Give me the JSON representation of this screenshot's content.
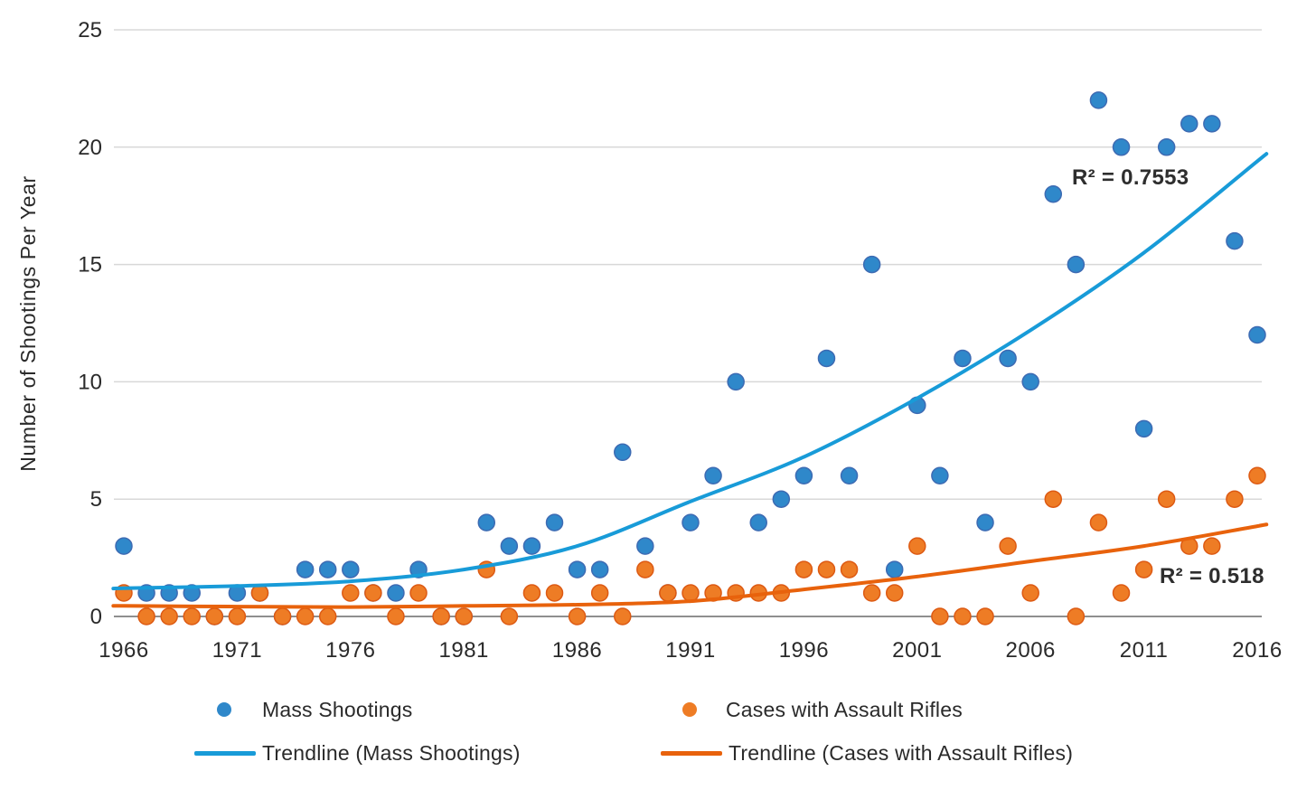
{
  "chart_data": {
    "type": "scatter",
    "title": "",
    "xlabel": "",
    "ylabel": "Number of Shootings Per Year",
    "xlim": [
      1966,
      2016
    ],
    "ylim": [
      0,
      25
    ],
    "x_ticks": [
      1966,
      1971,
      1976,
      1981,
      1986,
      1991,
      1996,
      2001,
      2006,
      2011,
      2016
    ],
    "y_ticks": [
      0,
      5,
      10,
      15,
      20,
      25
    ],
    "grid": "horizontal",
    "legend_position": "bottom",
    "years": [
      1966,
      1967,
      1968,
      1969,
      1970,
      1971,
      1972,
      1973,
      1974,
      1975,
      1976,
      1977,
      1978,
      1979,
      1980,
      1981,
      1982,
      1983,
      1984,
      1985,
      1986,
      1987,
      1988,
      1989,
      1990,
      1991,
      1992,
      1993,
      1994,
      1995,
      1996,
      1997,
      1998,
      1999,
      2000,
      2001,
      2002,
      2003,
      2004,
      2005,
      2006,
      2007,
      2008,
      2009,
      2010,
      2011,
      2012,
      2013,
      2014,
      2015,
      2016
    ],
    "series": [
      {
        "name": "Mass Shootings",
        "marker_color": "#2f88ca",
        "marker_edge": "#3d6bb3",
        "values": [
          3,
          1,
          1,
          1,
          0,
          1,
          1,
          0,
          2,
          2,
          2,
          1,
          1,
          2,
          0,
          0,
          4,
          3,
          3,
          4,
          2,
          2,
          7,
          3,
          1,
          4,
          6,
          10,
          4,
          5,
          6,
          11,
          6,
          15,
          2,
          9,
          6,
          11,
          4,
          11,
          10,
          18,
          15,
          22,
          20,
          8,
          20,
          21,
          21,
          16,
          12
        ]
      },
      {
        "name": "Cases with Assault Rifles",
        "marker_color": "#ee7c25",
        "marker_edge": "#dd5a13",
        "values": [
          1,
          0,
          0,
          0,
          0,
          0,
          1,
          0,
          0,
          0,
          1,
          1,
          0,
          1,
          0,
          0,
          2,
          0,
          1,
          1,
          0,
          1,
          0,
          2,
          1,
          1,
          1,
          1,
          1,
          1,
          2,
          2,
          2,
          1,
          1,
          3,
          0,
          0,
          0,
          3,
          1,
          5,
          0,
          4,
          1,
          2,
          5,
          3,
          3,
          5,
          6
        ]
      }
    ],
    "trendlines": [
      {
        "name": "Trendline (Mass Shootings)",
        "color": "#189bd8",
        "points": [
          [
            1966,
            1.2
          ],
          [
            1971,
            1.3
          ],
          [
            1976,
            1.5
          ],
          [
            1981,
            2.0
          ],
          [
            1986,
            3.0
          ],
          [
            1991,
            4.9
          ],
          [
            1996,
            6.8
          ],
          [
            2001,
            9.3
          ],
          [
            2006,
            12.2
          ],
          [
            2011,
            15.5
          ],
          [
            2016,
            19.4
          ]
        ]
      },
      {
        "name": "Trendline (Cases with Assault Rifles)",
        "color": "#e8620c",
        "points": [
          [
            1966,
            0.45
          ],
          [
            1971,
            0.42
          ],
          [
            1976,
            0.4
          ],
          [
            1981,
            0.45
          ],
          [
            1986,
            0.5
          ],
          [
            1991,
            0.65
          ],
          [
            1996,
            1.15
          ],
          [
            2001,
            1.7
          ],
          [
            2006,
            2.35
          ],
          [
            2011,
            3.0
          ],
          [
            2016,
            3.85
          ]
        ]
      }
    ],
    "annotations": [
      {
        "text": "R² = 0.7553",
        "series": "Mass Shootings"
      },
      {
        "text": "R² = 0.518",
        "series": "Cases with Assault Rifles"
      }
    ]
  },
  "legend": {
    "items": [
      {
        "label": "Mass Shootings",
        "type": "dot",
        "color": "#2f88ca"
      },
      {
        "label": "Cases with Assault Rifles",
        "type": "dot",
        "color": "#ee7c25"
      },
      {
        "label": "Trendline (Mass Shootings)",
        "type": "line",
        "color": "#189bd8"
      },
      {
        "label": "Trendline (Cases with Assault Rifles)",
        "type": "line",
        "color": "#e8620c"
      }
    ]
  },
  "colors": {
    "gridline": "#d8d8d8",
    "axis_line": "#8f8f8f",
    "text": "#2a2a2a"
  }
}
